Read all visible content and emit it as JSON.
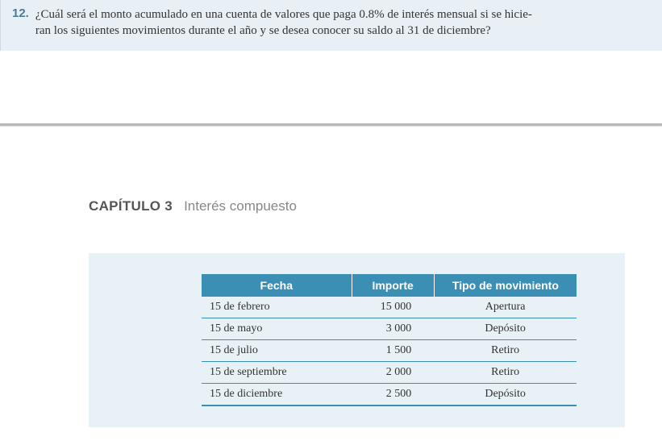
{
  "question": {
    "number": "12.",
    "line1": "¿Cuál será el monto acumulado en una cuenta de valores que paga 0.8% de interés mensual si se hicie-",
    "line2": "ran los siguientes movimientos durante el año y se desea conocer su saldo al 31 de diciembre?"
  },
  "chapter": {
    "label": "CAPÍTULO 3",
    "title": "Interés compuesto"
  },
  "table": {
    "headers": {
      "fecha": "Fecha",
      "importe": "Importe",
      "tipo": "Tipo de movimiento"
    },
    "rows": [
      {
        "fecha": "15 de febrero",
        "importe": "15 000",
        "tipo": "Apertura"
      },
      {
        "fecha": "15 de mayo",
        "importe": "3 000",
        "tipo": "Depósito"
      },
      {
        "fecha": "15 de julio",
        "importe": "1 500",
        "tipo": "Retiro"
      },
      {
        "fecha": "15 de septiembre",
        "importe": "2 000",
        "tipo": "Retiro"
      },
      {
        "fecha": "15 de diciembre",
        "importe": "2 500",
        "tipo": "Depósito"
      }
    ]
  },
  "colors": {
    "question_bg": "#e8f0f5",
    "header_bg": "#3b8fb5",
    "panel_bg": "#e8f1f6",
    "row_border": "#3b8fb5"
  }
}
